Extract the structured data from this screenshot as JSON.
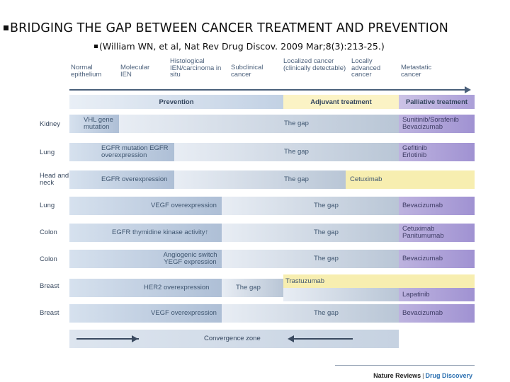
{
  "slide": {
    "title": "BRIDGING THE GAP BETWEEN CANCER TREATMENT AND PREVENTION",
    "citation": "(William WN, et al, Nat Rev Drug Discov. 2009 Mar;8(3):213-25.)"
  },
  "stages": [
    "Normal epithelium",
    "Molecular IEN",
    "Histological IEN/carcinoma in situ",
    "Subclinical cancer",
    "Localized cancer (clinically detectable)",
    "Locally advanced cancer",
    "Metastatic cancer"
  ],
  "bands": {
    "prevention": "Prevention",
    "adjuvant": "Adjuvant treatment",
    "palliative": "Palliative treatment"
  },
  "rows": [
    {
      "organ": "Kidney",
      "marker": "VHL gene mutation",
      "gap": "The gap",
      "adjuvant": "",
      "palliative": "Sunitinib/Sorafenib Bevacizumab"
    },
    {
      "organ": "Lung",
      "marker": "EGFR mutation EGFR overexpression",
      "gap": "The gap",
      "adjuvant": "",
      "palliative": "Gefitinib Erlotinib"
    },
    {
      "organ": "Head and neck",
      "marker": "EGFR overexpression",
      "gap": "The gap",
      "adjuvant": "Cetuximab",
      "palliative": ""
    },
    {
      "organ": "Lung",
      "marker": "VEGF overexpression",
      "gap": "The gap",
      "adjuvant": "",
      "palliative": "Bevacizumab"
    },
    {
      "organ": "Colon",
      "marker": "EGFR thymidine kinase activity↑",
      "gap": "The gap",
      "adjuvant": "",
      "palliative": "Cetuximab Panitumumab"
    },
    {
      "organ": "Colon",
      "marker": "Angiogenic switch YEGF expression",
      "gap": "The gap",
      "adjuvant": "",
      "palliative": "Bevacizumab"
    },
    {
      "organ": "Breast",
      "marker": "HER2 overexpression",
      "gap": "The gap",
      "adjuvant": "Trastuzumab",
      "palliative": "Lapatinib"
    },
    {
      "organ": "Breast",
      "marker": "VEGF overexpression",
      "gap": "The gap",
      "adjuvant": "",
      "palliative": "Bevacizumab"
    }
  ],
  "convergence": "Convergence zone",
  "source": {
    "journal": "Nature Reviews",
    "separator": "|",
    "section": "Drug Discovery"
  }
}
